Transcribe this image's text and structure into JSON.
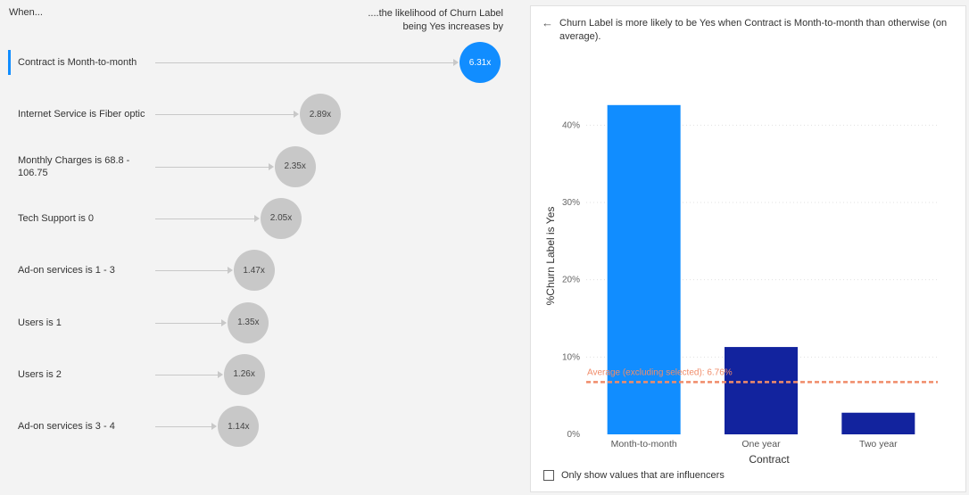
{
  "left": {
    "when_label": "When...",
    "likelihood_label": "....the likelihood of Churn Label being Yes increases by",
    "influencers": [
      {
        "label": "Contract is Month-to-month",
        "value": 6.31,
        "value_label": "6.31x",
        "selected": true
      },
      {
        "label": "Internet Service is Fiber optic",
        "value": 2.89,
        "value_label": "2.89x",
        "selected": false
      },
      {
        "label": "Monthly Charges is 68.8 - 106.75",
        "value": 2.35,
        "value_label": "2.35x",
        "selected": false
      },
      {
        "label": "Tech Support is 0",
        "value": 2.05,
        "value_label": "2.05x",
        "selected": false
      },
      {
        "label": "Ad-on services is 1 - 3",
        "value": 1.47,
        "value_label": "1.47x",
        "selected": false
      },
      {
        "label": "Users is 1",
        "value": 1.35,
        "value_label": "1.35x",
        "selected": false
      },
      {
        "label": "Users is 2",
        "value": 1.26,
        "value_label": "1.26x",
        "selected": false
      },
      {
        "label": "Ad-on services is 3 - 4",
        "value": 1.14,
        "value_label": "1.14x",
        "selected": false
      }
    ]
  },
  "right": {
    "back_icon": "arrow-left-icon",
    "description": "Churn Label is more likely to be Yes when Contract is Month-to-month than otherwise (on average).",
    "checkbox_label": "Only show values that are influencers",
    "checkbox_checked": false
  },
  "chart_data": {
    "type": "bar",
    "categories": [
      "Month-to-month",
      "One year",
      "Two year"
    ],
    "values": [
      42.6,
      11.3,
      2.8
    ],
    "colors": [
      "#118dff",
      "#12239e",
      "#12239e"
    ],
    "xlabel": "Contract",
    "ylabel": "%Churn Label is Yes",
    "ylim": [
      0,
      45
    ],
    "yticks": [
      0,
      10,
      20,
      30,
      40
    ],
    "ytick_labels": [
      "0%",
      "10%",
      "20%",
      "30%",
      "40%"
    ],
    "grid": true,
    "reference_line": {
      "value": 6.76,
      "label": "Average (excluding selected): 6.76%",
      "color": "#f08c6a"
    }
  }
}
